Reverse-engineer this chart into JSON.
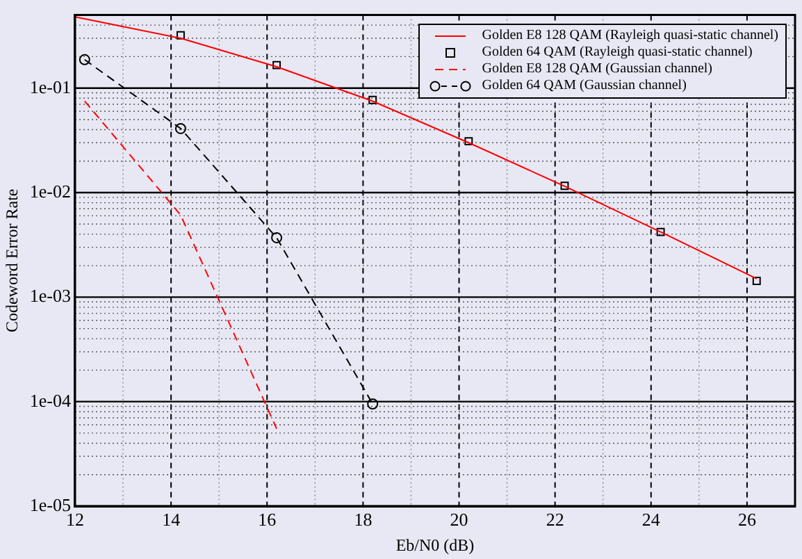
{
  "chart_data": {
    "type": "line",
    "xlabel": "Eb/N0 (dB)",
    "ylabel": "Codeword Error Rate",
    "log": "y",
    "grid": true,
    "legend": "top right",
    "xlim": [
      12,
      27
    ],
    "xticks": [
      12,
      {
        "value": 13,
        "label": null
      },
      14,
      {
        "value": 15,
        "label": null
      },
      16,
      {
        "value": 17,
        "label": null
      },
      18,
      {
        "value": 19,
        "label": null
      },
      20,
      {
        "value": 21,
        "label": null
      },
      22,
      {
        "value": 23,
        "label": null
      },
      24,
      {
        "value": 25,
        "label": null
      },
      26
    ],
    "ylim": [
      1e-05,
      0.5
    ],
    "yticks": [
      {
        "value": 1e-05,
        "label": "1e-05"
      },
      {
        "value": 2e-05,
        "label": null
      },
      {
        "value": 3e-05,
        "label": null
      },
      {
        "value": 4e-05,
        "label": null
      },
      {
        "value": 5e-05,
        "label": null
      },
      {
        "value": 6e-05,
        "label": null
      },
      {
        "value": 7e-05,
        "label": null
      },
      {
        "value": 8e-05,
        "label": null
      },
      {
        "value": 9e-05,
        "label": null
      },
      {
        "value": 0.0001,
        "label": "1e-04"
      },
      {
        "value": 0.0002,
        "label": null
      },
      {
        "value": 0.0003,
        "label": null
      },
      {
        "value": 0.0004,
        "label": null
      },
      {
        "value": 0.0005,
        "label": null
      },
      {
        "value": 0.0006,
        "label": null
      },
      {
        "value": 0.0007,
        "label": null
      },
      {
        "value": 0.0008,
        "label": null
      },
      {
        "value": 0.0009,
        "label": null
      },
      {
        "value": 0.001,
        "label": "1e-03"
      },
      {
        "value": 0.002,
        "label": null
      },
      {
        "value": 0.003,
        "label": null
      },
      {
        "value": 0.004,
        "label": null
      },
      {
        "value": 0.005,
        "label": null
      },
      {
        "value": 0.006,
        "label": null
      },
      {
        "value": 0.007,
        "label": null
      },
      {
        "value": 0.008,
        "label": null
      },
      {
        "value": 0.009,
        "label": null
      },
      {
        "value": 0.01,
        "label": "1e-02"
      },
      {
        "value": 0.02,
        "label": null
      },
      {
        "value": 0.03,
        "label": null
      },
      {
        "value": 0.04,
        "label": null
      },
      {
        "value": 0.05,
        "label": null
      },
      {
        "value": 0.06,
        "label": null
      },
      {
        "value": 0.07,
        "label": null
      },
      {
        "value": 0.08,
        "label": null
      },
      {
        "value": 0.09,
        "label": null
      },
      {
        "value": 0.1,
        "label": "1e-01"
      },
      {
        "value": 0.2,
        "label": null
      },
      {
        "value": 0.3,
        "label": null
      },
      {
        "value": 0.4,
        "label": null
      },
      {
        "value": 0.5,
        "label": null
      }
    ],
    "series": [
      {
        "name": "Golden E8 128 QAM (Rayleigh quasi-static channel)",
        "color": "#ff0000",
        "line_style": "solid",
        "marker": "none",
        "x": [
          12,
          14.2,
          16.2,
          18.2,
          20.2,
          22.2,
          24.2,
          26.2
        ],
        "values": [
          0.48,
          0.3,
          0.16,
          0.075,
          0.03,
          0.0115,
          0.0042,
          0.0015
        ]
      },
      {
        "name": "Golden 64 QAM (Rayleigh quasi-static channel)",
        "type": "scatter",
        "color": "#000000",
        "marker": "square",
        "x": [
          14.2,
          16.2,
          18.2,
          20.2,
          22.2,
          24.2,
          26.2
        ],
        "values": [
          0.32,
          0.166,
          0.077,
          0.031,
          0.0116,
          0.0042,
          0.00143
        ]
      },
      {
        "name": "Golden E8 128 QAM (Gaussian channel)",
        "color": "#ff0000",
        "line_style": "dashed",
        "marker": "none",
        "x": [
          12.2,
          14.2,
          16.2
        ],
        "values": [
          0.075,
          0.0061,
          5.5e-05
        ]
      },
      {
        "name": "Golden 64 QAM (Gaussian channel)",
        "color": "#000000",
        "line_style": "dashed",
        "marker": "circle",
        "x": [
          12.2,
          14.2,
          16.2,
          18.2
        ],
        "values": [
          0.187,
          0.041,
          0.0037,
          9.5e-05
        ]
      }
    ]
  }
}
